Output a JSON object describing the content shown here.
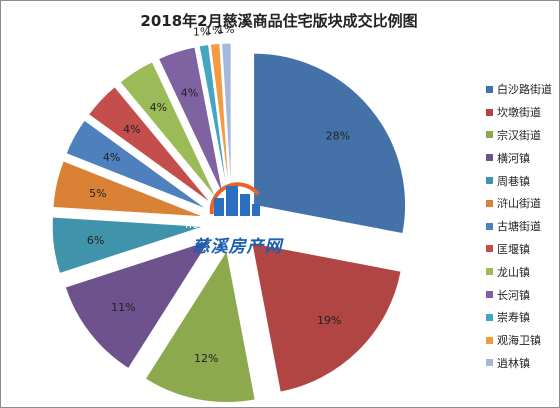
{
  "chart_data": {
    "type": "pie",
    "title": "2018年2月慈溪商品住宅版块成交比例图",
    "slices": [
      {
        "name": "白沙路街道",
        "value": 28,
        "label": "28%",
        "color": "#4472a8"
      },
      {
        "name": "坎墩街道",
        "value": 19,
        "label": "19%",
        "color": "#b04543"
      },
      {
        "name": "宗汉街道",
        "value": 12,
        "label": "12%",
        "color": "#8ca94e"
      },
      {
        "name": "横河镇",
        "value": 11,
        "label": "11%",
        "color": "#6d528e"
      },
      {
        "name": "周巷镇",
        "value": 6,
        "label": "6%",
        "color": "#3f93aa"
      },
      {
        "name": "浒山街道",
        "value": 5,
        "label": "5%",
        "color": "#d98134"
      },
      {
        "name": "古塘街道",
        "value": 4,
        "label": "4%",
        "color": "#4f80be"
      },
      {
        "name": "匡堰镇",
        "value": 4,
        "label": "4%",
        "color": "#c34e4b"
      },
      {
        "name": "龙山镇",
        "value": 4,
        "label": "4%",
        "color": "#9bbb59"
      },
      {
        "name": "长河镇",
        "value": 4,
        "label": "4%",
        "color": "#7f62a1"
      },
      {
        "name": "崇寿镇",
        "value": 1,
        "label": "1%",
        "color": "#45a6c4"
      },
      {
        "name": "观海卫镇",
        "value": 1,
        "label": "1%",
        "color": "#f39a43"
      },
      {
        "name": "逍林镇",
        "value": 1,
        "label": "1%",
        "color": "#a5b8dc"
      }
    ],
    "legend_position": "right"
  },
  "watermark": {
    "url": "house.zxip.com",
    "name": "慈溪房产网"
  }
}
